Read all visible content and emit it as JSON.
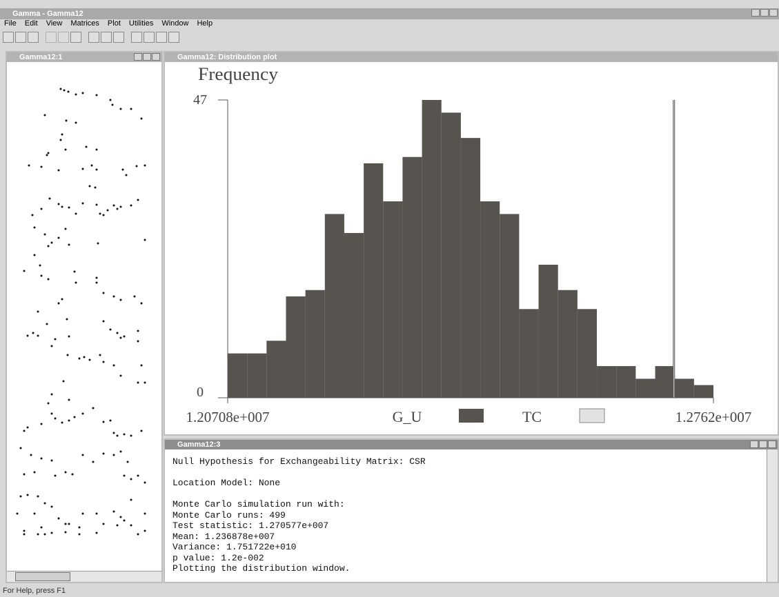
{
  "window_title": "Gamma - Gamma12",
  "menu": [
    "File",
    "Edit",
    "View",
    "Matrices",
    "Plot",
    "Utilities",
    "Window",
    "Help"
  ],
  "windows": {
    "point_map": {
      "title": "Gamma12:1"
    },
    "plot": {
      "title": "Gamma12: Distribution plot"
    },
    "output": {
      "title": "Gamma12:3",
      "paragraphs": [
        [
          "Null Hypothesis for Exchangeability Matrix: CSR"
        ],
        [
          "Location Model: None"
        ],
        [
          "Monte Carlo simulation run with:",
          "Monte Carlo runs: 499",
          "Test statistic: 1.270577e+007",
          "Mean: 1.236878e+007",
          "Variance: 1.751722e+010",
          "p value: 1.2e-002",
          "Plotting the distribution window."
        ]
      ]
    }
  },
  "chart_data": {
    "type": "histogram",
    "ylabel": "Frequency",
    "bins": [
      12070800,
      12098448,
      12126096,
      12153744,
      12181392,
      12209040,
      12236688,
      12264336,
      12291984,
      12319632,
      12347280,
      12374928,
      12402576,
      12430224,
      12457872,
      12485520,
      12513168,
      12540816,
      12568464,
      12596112,
      12623760,
      12651408,
      12679056,
      12706704,
      12734352,
      12762000
    ],
    "series": [
      {
        "name": "G_U",
        "color": "#57544f",
        "values": [
          7,
          7,
          9,
          16,
          17,
          29,
          26,
          37,
          31,
          38,
          47,
          45,
          41,
          31,
          29,
          14,
          21,
          17,
          14,
          5,
          5,
          3,
          5,
          3,
          2
        ]
      }
    ],
    "reference_line": {
      "name": "TC",
      "color": "#e2e2e2",
      "value": 12705770
    },
    "xlim": [
      12070800,
      12762000
    ],
    "ylim": [
      0,
      47
    ],
    "xticks": [
      {
        "value": 12070800,
        "label": "1.20708e+007"
      },
      {
        "value": 12762000,
        "label": "1.2762e+007"
      }
    ],
    "yticks": [
      0,
      47
    ]
  },
  "status_bar": "For Help, press F1"
}
